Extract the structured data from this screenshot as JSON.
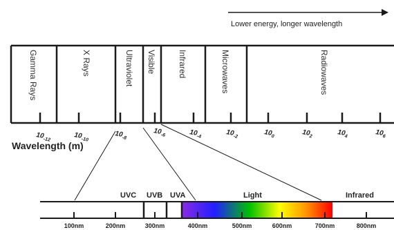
{
  "arrow_caption": "Lower energy, longer wavelength",
  "axis_title": "Wavelength (m)",
  "bands": [
    {
      "label": "Gamma Rays"
    },
    {
      "label": "X Rays"
    },
    {
      "label": "Ultraviolet"
    },
    {
      "label": "Visible"
    },
    {
      "label": "Infrared"
    },
    {
      "label": "Microwaves"
    },
    {
      "label": "Radiowaves"
    }
  ],
  "ticks": [
    {
      "base": "10",
      "exp": "-12"
    },
    {
      "base": "10",
      "exp": "-10"
    },
    {
      "base": "10",
      "exp": "-8"
    },
    {
      "base": "10",
      "exp": "-6"
    },
    {
      "base": "10",
      "exp": "-4"
    },
    {
      "base": "10",
      "exp": "-2"
    },
    {
      "base": "10",
      "exp": "0"
    },
    {
      "base": "10",
      "exp": "2"
    },
    {
      "base": "10",
      "exp": "4"
    },
    {
      "base": "10",
      "exp": "6"
    }
  ],
  "sub_labels": [
    "UVC",
    "UVB",
    "UVA",
    "Light",
    "Infrared"
  ],
  "nm_ticks": [
    "100nm",
    "200nm",
    "300nm",
    "400nm",
    "500nm",
    "600nm",
    "700nm",
    "800nm"
  ],
  "colors": {
    "ink": "#1a1a1a",
    "violet": "#8a2be2",
    "blue": "#2020ff",
    "green": "#00c000",
    "yellow": "#ffff00",
    "orange": "#ff9900",
    "red": "#ff0000"
  }
}
